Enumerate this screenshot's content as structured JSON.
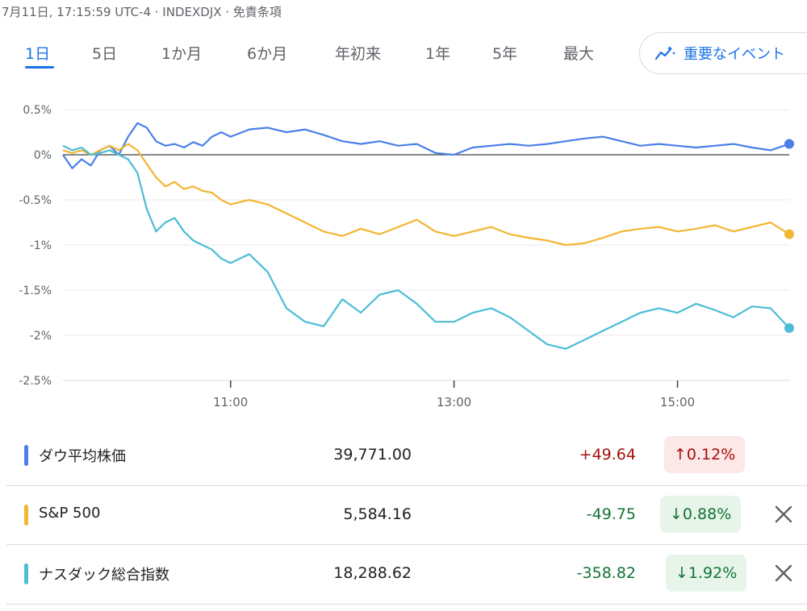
{
  "meta_text": "7月11日, 17:15:59 UTC-4 · INDEXDJX · 免責条項",
  "tabs": [
    "1日",
    "5日",
    "1か月",
    "6か月",
    "年初来",
    "1年",
    "5年",
    "最大"
  ],
  "active_tab": "1日",
  "key_events_label": "重要なイベント",
  "colors": {
    "dow": "#4a80e8",
    "sp500": "#f2b632",
    "nasdaq": "#4dbdd6",
    "up_text": "#a50e0e",
    "up_bg": "#fce8e6",
    "down_text": "#137333",
    "down_bg": "#e6f4ea"
  },
  "chart_data": {
    "type": "line",
    "title": "",
    "xlabel": "",
    "ylabel": "",
    "x_range": [
      "09:30",
      "16:00"
    ],
    "x_ticks": [
      "11:00",
      "13:00",
      "15:00"
    ],
    "ylim": [
      -2.5,
      0.5
    ],
    "y_ticks": [
      "0.5%",
      "0%",
      "-0.5%",
      "-1%",
      "-1.5%",
      "-2%",
      "-2.5%"
    ],
    "grid": true,
    "zero_line": true,
    "series": [
      {
        "key": "dow",
        "x": [
          "09:30",
          "09:35",
          "09:40",
          "09:45",
          "09:50",
          "09:55",
          "10:00",
          "10:05",
          "10:10",
          "10:15",
          "10:20",
          "10:25",
          "10:30",
          "10:35",
          "10:40",
          "10:45",
          "10:50",
          "10:55",
          "11:00",
          "11:10",
          "11:20",
          "11:30",
          "11:40",
          "11:50",
          "12:00",
          "12:10",
          "12:20",
          "12:30",
          "12:40",
          "12:50",
          "13:00",
          "13:10",
          "13:20",
          "13:30",
          "13:40",
          "13:50",
          "14:00",
          "14:10",
          "14:20",
          "14:30",
          "14:40",
          "14:50",
          "15:00",
          "15:10",
          "15:20",
          "15:30",
          "15:40",
          "15:50",
          "16:00"
        ],
        "values": [
          0.0,
          -0.15,
          -0.05,
          -0.12,
          0.05,
          0.1,
          0.0,
          0.2,
          0.35,
          0.3,
          0.15,
          0.1,
          0.12,
          0.08,
          0.14,
          0.1,
          0.2,
          0.25,
          0.2,
          0.28,
          0.3,
          0.25,
          0.28,
          0.22,
          0.15,
          0.12,
          0.15,
          0.1,
          0.12,
          0.02,
          0.0,
          0.08,
          0.1,
          0.12,
          0.1,
          0.12,
          0.15,
          0.18,
          0.2,
          0.15,
          0.1,
          0.12,
          0.1,
          0.08,
          0.1,
          0.12,
          0.08,
          0.05,
          0.12
        ]
      },
      {
        "key": "sp500",
        "x": [
          "09:30",
          "09:35",
          "09:40",
          "09:45",
          "09:50",
          "09:55",
          "10:00",
          "10:05",
          "10:10",
          "10:15",
          "10:20",
          "10:25",
          "10:30",
          "10:35",
          "10:40",
          "10:45",
          "10:50",
          "10:55",
          "11:00",
          "11:10",
          "11:20",
          "11:30",
          "11:40",
          "11:50",
          "12:00",
          "12:10",
          "12:20",
          "12:30",
          "12:40",
          "12:50",
          "13:00",
          "13:10",
          "13:20",
          "13:30",
          "13:40",
          "13:50",
          "14:00",
          "14:10",
          "14:20",
          "14:30",
          "14:40",
          "14:50",
          "15:00",
          "15:10",
          "15:20",
          "15:30",
          "15:40",
          "15:50",
          "16:00"
        ],
        "values": [
          0.05,
          0.02,
          0.05,
          0.0,
          0.05,
          0.1,
          0.05,
          0.12,
          0.05,
          -0.1,
          -0.25,
          -0.35,
          -0.3,
          -0.38,
          -0.35,
          -0.4,
          -0.42,
          -0.5,
          -0.55,
          -0.5,
          -0.55,
          -0.65,
          -0.75,
          -0.85,
          -0.9,
          -0.82,
          -0.88,
          -0.8,
          -0.72,
          -0.85,
          -0.9,
          -0.85,
          -0.8,
          -0.88,
          -0.92,
          -0.95,
          -1.0,
          -0.98,
          -0.92,
          -0.85,
          -0.82,
          -0.8,
          -0.85,
          -0.82,
          -0.78,
          -0.85,
          -0.8,
          -0.75,
          -0.88
        ]
      },
      {
        "key": "nasdaq",
        "x": [
          "09:30",
          "09:35",
          "09:40",
          "09:45",
          "09:50",
          "09:55",
          "10:00",
          "10:05",
          "10:10",
          "10:15",
          "10:20",
          "10:25",
          "10:30",
          "10:35",
          "10:40",
          "10:45",
          "10:50",
          "10:55",
          "11:00",
          "11:10",
          "11:20",
          "11:30",
          "11:40",
          "11:50",
          "12:00",
          "12:10",
          "12:20",
          "12:30",
          "12:40",
          "12:50",
          "13:00",
          "13:10",
          "13:20",
          "13:30",
          "13:40",
          "13:50",
          "14:00",
          "14:10",
          "14:20",
          "14:30",
          "14:40",
          "14:50",
          "15:00",
          "15:10",
          "15:20",
          "15:30",
          "15:40",
          "15:50",
          "16:00"
        ],
        "values": [
          0.1,
          0.05,
          0.08,
          0.0,
          0.02,
          0.05,
          0.0,
          -0.05,
          -0.2,
          -0.6,
          -0.85,
          -0.75,
          -0.7,
          -0.85,
          -0.95,
          -1.0,
          -1.05,
          -1.15,
          -1.2,
          -1.1,
          -1.3,
          -1.7,
          -1.85,
          -1.9,
          -1.6,
          -1.75,
          -1.55,
          -1.5,
          -1.65,
          -1.85,
          -1.85,
          -1.75,
          -1.7,
          -1.8,
          -1.95,
          -2.1,
          -2.15,
          -2.05,
          -1.95,
          -1.85,
          -1.75,
          -1.7,
          -1.75,
          -1.65,
          -1.72,
          -1.8,
          -1.68,
          -1.7,
          -1.92
        ]
      }
    ]
  },
  "rows": [
    {
      "key": "dow",
      "name": "ダウ平均株価",
      "price": "39,771.00",
      "change": "+49.64",
      "percent": "0.12%",
      "direction": "up",
      "removable": false
    },
    {
      "key": "sp500",
      "name": "S&P 500",
      "price": "5,584.16",
      "change": "-49.75",
      "percent": "0.88%",
      "direction": "down",
      "removable": true
    },
    {
      "key": "nasdaq",
      "name": "ナスダック総合指数",
      "price": "18,288.62",
      "change": "-358.82",
      "percent": "1.92%",
      "direction": "down",
      "removable": true
    }
  ]
}
